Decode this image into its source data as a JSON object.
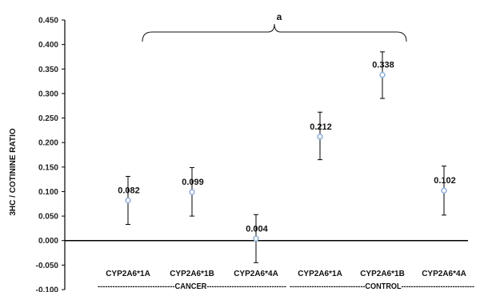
{
  "chart_data": {
    "type": "scatter",
    "ylabel": "3HC / COTININE RATIO",
    "ylim": [
      -0.1,
      0.45
    ],
    "y_ticks": [
      "0.450",
      "0.400",
      "0.350",
      "0.300",
      "0.250",
      "0.200",
      "0.150",
      "0.100",
      "0.050",
      "0.000",
      "-0.050",
      "-0.100"
    ],
    "categories": [
      "CYP2A6*1A",
      "CYP2A6*1B",
      "CYP2A6*4A",
      "CYP2A6*1A",
      "CYP2A6*1B",
      "CYP2A6*4A"
    ],
    "groups": [
      {
        "label": "-------------------------------CANCER--------------------------------",
        "categories": [
          0,
          1,
          2
        ]
      },
      {
        "label": "-------------------------------CONTROL------------------------------",
        "categories": [
          3,
          4,
          5
        ]
      }
    ],
    "series": [
      {
        "values": [
          0.082,
          0.099,
          0.004,
          0.212,
          0.338,
          0.102
        ],
        "labels": [
          "0.082",
          "0.099",
          "0.004",
          "0.212",
          "0.338",
          "0.102"
        ],
        "error_low": [
          0.033,
          0.05,
          -0.045,
          0.165,
          0.29,
          0.052
        ],
        "error_high": [
          0.131,
          0.149,
          0.053,
          0.262,
          0.385,
          0.152
        ]
      }
    ],
    "annotations": [
      {
        "text": "a",
        "from_category": 0,
        "to_category": 4
      }
    ],
    "colors": {
      "marker_stroke": "#8fb0d8",
      "marker_fill": "#ffffff",
      "axis": "#000000",
      "error_bar": "#000000"
    },
    "grid": false,
    "legend": "none"
  }
}
